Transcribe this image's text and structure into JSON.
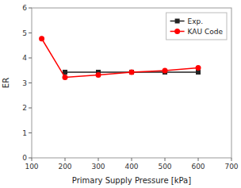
{
  "chart_data": {
    "type": "line",
    "xlabel": "Primary Supply Pressure [kPa]",
    "ylabel": "ER",
    "series": [
      {
        "name": "Exp.",
        "color": "#222222",
        "marker": "square",
        "x": [
          200,
          300,
          400,
          500,
          600
        ],
        "values": [
          3.43,
          3.43,
          3.43,
          3.43,
          3.43
        ]
      },
      {
        "name": "KAU Code",
        "color": "#ff0000",
        "marker": "circle",
        "x": [
          130,
          200,
          300,
          400,
          500,
          600
        ],
        "values": [
          4.77,
          3.22,
          3.32,
          3.43,
          3.49,
          3.6
        ]
      }
    ],
    "xlim": [
      100,
      700
    ],
    "ylim": [
      0,
      6
    ],
    "xticks": [
      100,
      200,
      300,
      400,
      500,
      600,
      700
    ],
    "yticks": [
      0,
      1,
      2,
      3,
      4,
      5,
      6
    ],
    "legend": "upper right",
    "grid": false
  }
}
